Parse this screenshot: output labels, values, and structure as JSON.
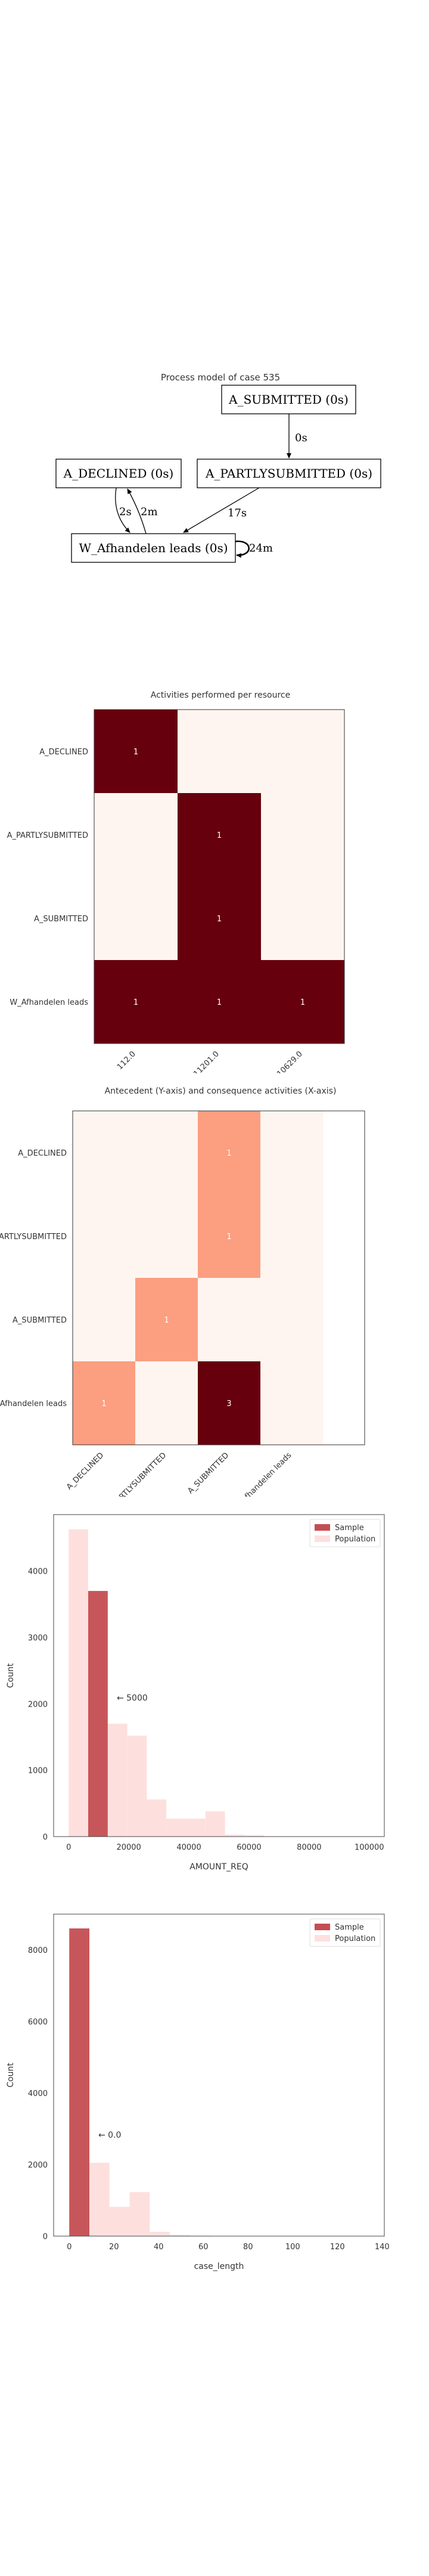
{
  "process_model": {
    "title": "Process model of case 535",
    "nodes": [
      {
        "id": "A_SUBMITTED",
        "label": "A_SUBMITTED (0s)"
      },
      {
        "id": "A_DECLINED",
        "label": "A_DECLINED (0s)"
      },
      {
        "id": "A_PARTLYSUBMITTED",
        "label": "A_PARTLYSUBMITTED (0s)"
      },
      {
        "id": "W_Afhandelen",
        "label": "W_Afhandelen leads (0s)"
      }
    ],
    "edges": [
      {
        "from": "A_SUBMITTED",
        "to": "A_PARTLYSUBMITTED",
        "label": "0s"
      },
      {
        "from": "A_PARTLYSUBMITTED",
        "to": "W_Afhandelen",
        "label": "17s"
      },
      {
        "from": "A_DECLINED",
        "to": "W_Afhandelen",
        "label": "2s"
      },
      {
        "from": "W_Afhandelen",
        "to": "A_DECLINED",
        "label": "2m"
      },
      {
        "from": "W_Afhandelen",
        "to": "W_Afhandelen",
        "label": "24m"
      }
    ]
  },
  "chart_data": [
    {
      "type": "heatmap",
      "title": "Activities performed per resource",
      "rows": [
        "A_DECLINED",
        "A_PARTLYSUBMITTED",
        "A_SUBMITTED",
        "W_Afhandelen leads"
      ],
      "cols": [
        "112.0",
        "11201.0",
        "10629.0"
      ],
      "values": [
        [
          1,
          0,
          0
        ],
        [
          0,
          1,
          0
        ],
        [
          0,
          1,
          0
        ],
        [
          1,
          1,
          1
        ]
      ],
      "colors": {
        "low": "#fff5f0",
        "high": "#67000d"
      }
    },
    {
      "type": "heatmap",
      "title": "Antecedent (Y-axis) and consequence activities (X-axis)",
      "rows": [
        "A_DECLINED",
        "A_PARTLYSUBMITTED",
        "A_SUBMITTED",
        "W_Afhandelen leads"
      ],
      "cols": [
        "A_DECLINED",
        "A_PARTLYSUBMITTED",
        "A_SUBMITTED",
        "W_Afhandelen leads"
      ],
      "values": [
        [
          0,
          0,
          1,
          0
        ],
        [
          0,
          0,
          1,
          0
        ],
        [
          0,
          1,
          0,
          0
        ],
        [
          1,
          0,
          3,
          0
        ]
      ],
      "colors": {
        "low": "#fff5f0",
        "mid": "#fc9e80",
        "high": "#67000d"
      }
    },
    {
      "type": "bar",
      "xlabel": "AMOUNT_REQ",
      "ylabel": "Count",
      "xlim": [
        -5000,
        105000
      ],
      "ylim": [
        0,
        4850
      ],
      "xticks": [
        0,
        20000,
        40000,
        60000,
        80000,
        100000
      ],
      "yticks": [
        0,
        1000,
        2000,
        3000,
        4000
      ],
      "annotation": {
        "text": "← 5000",
        "x": 16000,
        "y": 2050
      },
      "legend": {
        "position": "top-right",
        "entries": [
          "Sample",
          "Population"
        ]
      },
      "series": [
        {
          "name": "Population",
          "color": "#fde0dd",
          "bin_width": 6500,
          "bins": [
            {
              "x0": 0,
              "value": 4630
            },
            {
              "x0": 6500,
              "value": 3650
            },
            {
              "x0": 13000,
              "value": 1700
            },
            {
              "x0": 19500,
              "value": 1520
            },
            {
              "x0": 26000,
              "value": 560
            },
            {
              "x0": 32500,
              "value": 270
            },
            {
              "x0": 39000,
              "value": 270
            },
            {
              "x0": 45500,
              "value": 380
            },
            {
              "x0": 52000,
              "value": 30
            },
            {
              "x0": 58500,
              "value": 20
            }
          ]
        },
        {
          "name": "Sample",
          "color": "#c44e52",
          "bins": [
            {
              "x0": 6500,
              "x1": 13000,
              "value": 3700
            }
          ]
        }
      ]
    },
    {
      "type": "bar",
      "xlabel": "case_length",
      "ylabel": "Count",
      "xlim": [
        -7,
        141
      ],
      "ylim": [
        0,
        9000
      ],
      "xticks": [
        0,
        20,
        40,
        60,
        80,
        100,
        120,
        140
      ],
      "yticks": [
        0,
        2000,
        4000,
        6000,
        8000
      ],
      "annotation": {
        "text": "← 0.0",
        "x": 13,
        "y": 2750
      },
      "legend": {
        "position": "top-right",
        "entries": [
          "Sample",
          "Population"
        ]
      },
      "series": [
        {
          "name": "Population",
          "color": "#fde0dd",
          "bin_width": 9,
          "bins": [
            {
              "x0": 0,
              "value": 8600
            },
            {
              "x0": 9,
              "value": 2050
            },
            {
              "x0": 18,
              "value": 820
            },
            {
              "x0": 27,
              "value": 1230
            },
            {
              "x0": 36,
              "value": 120
            },
            {
              "x0": 45,
              "value": 30
            },
            {
              "x0": 54,
              "value": 15
            }
          ]
        },
        {
          "name": "Sample",
          "color": "#c44e52",
          "bins": [
            {
              "x0": 0,
              "x1": 9,
              "value": 8600
            }
          ]
        }
      ]
    }
  ]
}
